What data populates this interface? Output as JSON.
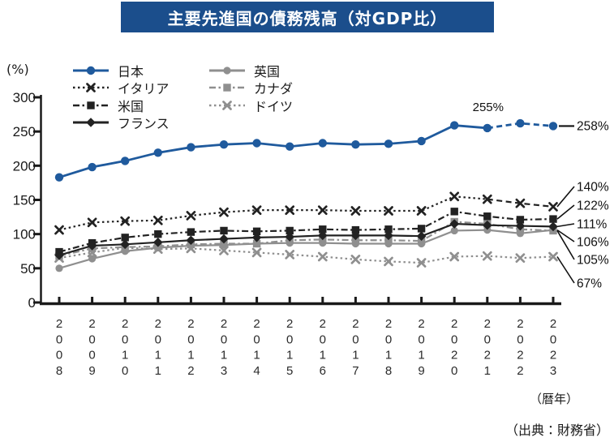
{
  "title": "主要先進国の債務残高（対GDP比）",
  "y_axis": {
    "unit": "(%)",
    "ticks": [
      0,
      50,
      100,
      150,
      200,
      250,
      300
    ]
  },
  "x_axis": {
    "years": [
      "2008",
      "2009",
      "2010",
      "2011",
      "2012",
      "2013",
      "2014",
      "2015",
      "2016",
      "2017",
      "2018",
      "2019",
      "2020",
      "2021",
      "2022",
      "2023"
    ],
    "note": "（暦年）"
  },
  "source": "（出典：財務省）",
  "colors": {
    "header_bg": "#1b4e8c",
    "header_text": "#ffffff",
    "axis": "#1a1a1a",
    "blue": "#1f5a9d",
    "black": "#222222",
    "gray": "#8f8f8f"
  },
  "chart_data": {
    "type": "line",
    "title": "主要先進国の債務残高（対GDP比）",
    "ylabel": "(%)",
    "ylim": [
      0,
      300
    ],
    "grid": false,
    "legend_position": "top-left",
    "x": [
      2008,
      2009,
      2010,
      2011,
      2012,
      2013,
      2014,
      2015,
      2016,
      2017,
      2018,
      2019,
      2020,
      2021,
      2022,
      2023
    ],
    "series": [
      {
        "key": "japan",
        "name": "日本",
        "color": "#1f5a9d",
        "line": "solid",
        "marker": "circle",
        "values": [
          183,
          198,
          207,
          219,
          227,
          231,
          233,
          228,
          233,
          231,
          232,
          236,
          259,
          255,
          262,
          258
        ],
        "dash_from": 13,
        "end_label": "258%",
        "annotation": {
          "index": 13,
          "label": "255%"
        }
      },
      {
        "key": "italy",
        "name": "イタリア",
        "color": "#222222",
        "line": "dotted",
        "marker": "x",
        "values": [
          106,
          117,
          119,
          120,
          127,
          132,
          135,
          135,
          135,
          134,
          134,
          134,
          155,
          151,
          145,
          140
        ],
        "dash_from": 13,
        "end_label": "140%"
      },
      {
        "key": "usa",
        "name": "米国",
        "color": "#222222",
        "line": "dashdot",
        "marker": "square",
        "values": [
          74,
          87,
          95,
          100,
          103,
          105,
          104,
          105,
          107,
          106,
          107,
          108,
          133,
          126,
          121,
          122
        ],
        "end_label": "122%"
      },
      {
        "key": "france",
        "name": "フランス",
        "color": "#222222",
        "line": "solid",
        "marker": "diamond",
        "values": [
          69,
          83,
          85,
          88,
          91,
          93,
          95,
          96,
          98,
          98,
          98,
          97,
          115,
          113,
          112,
          111
        ],
        "end_label": "111%"
      },
      {
        "key": "uk",
        "name": "英国",
        "color": "#8f8f8f",
        "line": "solid",
        "marker": "circle",
        "values": [
          50,
          64,
          75,
          80,
          83,
          84,
          86,
          87,
          87,
          86,
          86,
          86,
          105,
          106,
          101,
          106
        ],
        "end_label": "106%"
      },
      {
        "key": "canada",
        "name": "カナダ",
        "color": "#8f8f8f",
        "line": "dashdot",
        "marker": "square",
        "values": [
          68,
          79,
          81,
          82,
          85,
          86,
          86,
          91,
          92,
          91,
          91,
          90,
          118,
          115,
          107,
          105
        ],
        "end_label": "105%"
      },
      {
        "key": "germany",
        "name": "ドイツ",
        "color": "#8f8f8f",
        "line": "dotted",
        "marker": "x",
        "values": [
          65,
          73,
          80,
          78,
          79,
          76,
          73,
          70,
          67,
          63,
          60,
          58,
          67,
          68,
          65,
          67
        ],
        "end_label": "67%"
      }
    ]
  }
}
